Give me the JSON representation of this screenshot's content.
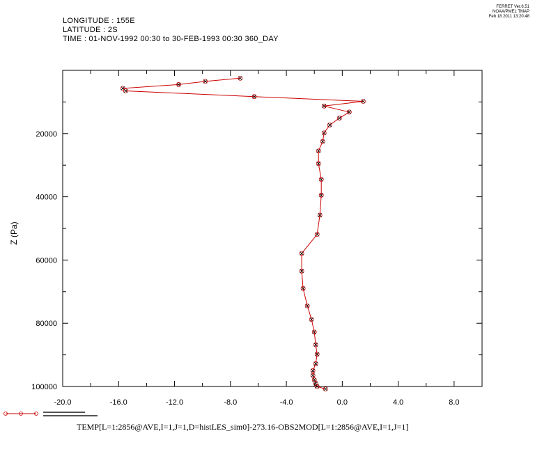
{
  "header": {
    "longitude": "LONGITUDE : 155E",
    "latitude": "LATITUDE : 2S",
    "time": "TIME : 01-NOV-1992 00:30 to 30-FEB-1993 00:30 360_DAY"
  },
  "stamp": {
    "line1": "FERRET  Ver.6.51",
    "line2": "NOAA/PMEL TMAP",
    "line3": "Feb 18 2011 13:20:48"
  },
  "caption": "TEMP[L=1:2856@AVE,I=1,J=1,D=histLES_sim0]-273.16-OBS2MOD[L=1:2856@AVE,I=1,J=1]",
  "colors": {
    "series": "#cc0000",
    "axes": "#000000"
  },
  "chart_data": {
    "type": "line",
    "xlim": [
      -20,
      10
    ],
    "ylim": [
      100000,
      0
    ],
    "y_reversed": true,
    "ylabel": "Z (Pa)",
    "xlabel": "",
    "xticks": [
      -20,
      -16,
      -12,
      -8,
      -4,
      0,
      4,
      8
    ],
    "xtick_labels": [
      "-20.0",
      "-16.0",
      "-12.0",
      "-8.0",
      "-4.0",
      "0.0",
      "4.0",
      "8.0"
    ],
    "yticks": [
      20000,
      40000,
      60000,
      80000,
      100000
    ],
    "ytick_labels": [
      "20000",
      "40000",
      "60000",
      "80000",
      "100000"
    ],
    "grid": false,
    "series": [
      {
        "name": "",
        "marker": "x",
        "x": [
          -7.3,
          -9.8,
          -11.7,
          -15.7,
          -15.5,
          -6.3,
          1.5,
          -1.3,
          0.5,
          -0.2,
          -0.9,
          -1.3,
          -1.4,
          -1.7,
          -1.7,
          -1.5,
          -1.5,
          -1.6,
          -1.8,
          -2.9,
          -2.9,
          -2.8,
          -2.5,
          -2.2,
          -2.0,
          -1.9,
          -1.8,
          -1.9,
          -2.1,
          -2.1,
          -2.0,
          -1.9,
          -1.8,
          -1.2
        ],
        "y": [
          2500,
          3500,
          4500,
          5700,
          6500,
          8300,
          9800,
          11300,
          13200,
          15100,
          17300,
          19800,
          22500,
          25500,
          29500,
          34500,
          39500,
          45800,
          51900,
          57900,
          63500,
          69000,
          74500,
          78800,
          82800,
          86800,
          89800,
          92800,
          95000,
          96500,
          97900,
          99000,
          100000,
          100800
        ]
      }
    ],
    "legend": "bottom-left"
  }
}
